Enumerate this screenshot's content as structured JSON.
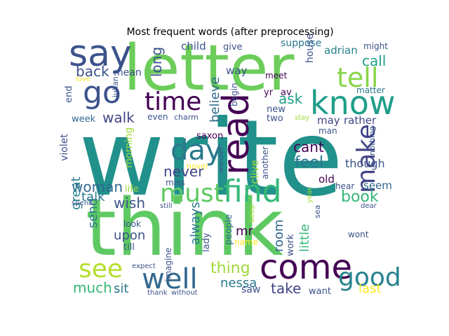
{
  "chart_data": {
    "type": "wordcloud",
    "title": "Most frequent words (after preprocessing)",
    "colormap": "viridis",
    "background": "#ffffff",
    "words": [
      {
        "text": "write",
        "color": "#21918c"
      },
      {
        "text": "think",
        "color": "#5ec962"
      },
      {
        "text": "letter",
        "color": "#6ccd5a"
      },
      {
        "text": "say",
        "color": "#3b528b"
      },
      {
        "text": "come",
        "color": "#440154"
      },
      {
        "text": "know",
        "color": "#1f9e89"
      },
      {
        "text": "find",
        "color": "#35b779"
      },
      {
        "text": "must",
        "color": "#5ec962"
      },
      {
        "text": "well",
        "color": "#31688e"
      },
      {
        "text": "go",
        "color": "#3b528b"
      },
      {
        "text": "time",
        "color": "#440154"
      },
      {
        "text": "see",
        "color": "#b5de2b"
      },
      {
        "text": "day",
        "color": "#2a788e"
      },
      {
        "text": "read",
        "color": "#440154"
      },
      {
        "text": "make",
        "color": "#414487"
      },
      {
        "text": "tell",
        "color": "#86d549"
      },
      {
        "text": "good",
        "color": "#26828e"
      },
      {
        "text": "book",
        "color": "#35b779"
      },
      {
        "text": "feel",
        "color": "#2a788e"
      },
      {
        "text": "cant",
        "color": "#440154"
      },
      {
        "text": "ask",
        "color": "#1f9e89"
      },
      {
        "text": "believe",
        "color": "#31688e"
      },
      {
        "text": "thing",
        "color": "#a0da39"
      },
      {
        "text": "never",
        "color": "#414487"
      },
      {
        "text": "woman",
        "color": "#31688e"
      },
      {
        "text": "back",
        "color": "#3b528b"
      },
      {
        "text": "long",
        "color": "#3b528b"
      },
      {
        "text": "walk",
        "color": "#414487"
      },
      {
        "text": "much",
        "color": "#35b779"
      },
      {
        "text": "take",
        "color": "#414487"
      },
      {
        "text": "talk",
        "color": "#2a788e"
      },
      {
        "text": "wish",
        "color": "#3b528b"
      },
      {
        "text": "great",
        "color": "#26828e"
      },
      {
        "text": "little",
        "color": "#35b779"
      },
      {
        "text": "always",
        "color": "#2a788e"
      },
      {
        "text": "call",
        "color": "#1f9e89"
      },
      {
        "text": "room",
        "color": "#31688e"
      },
      {
        "text": "nessa",
        "color": "#2a788e"
      },
      {
        "text": "upon",
        "color": "#3b528b"
      },
      {
        "text": "last",
        "color": "#fde725"
      },
      {
        "text": "send",
        "color": "#2a788e"
      },
      {
        "text": "sit",
        "color": "#2a788e"
      },
      {
        "text": "mr",
        "color": "#440154"
      },
      {
        "text": "though",
        "color": "#3b528b"
      },
      {
        "text": "may",
        "color": "#414487"
      },
      {
        "text": "rather",
        "color": "#414487"
      },
      {
        "text": "seem",
        "color": "#31688e"
      },
      {
        "text": "old",
        "color": "#440154"
      },
      {
        "text": "adrian",
        "color": "#26828e"
      },
      {
        "text": "child",
        "color": "#3b528b"
      },
      {
        "text": "give",
        "color": "#3b528b"
      },
      {
        "text": "suppose",
        "color": "#2a788e"
      },
      {
        "text": "way",
        "color": "#3b528b"
      },
      {
        "text": "house",
        "color": "#3b528b"
      },
      {
        "text": "mean",
        "color": "#3b528b"
      },
      {
        "text": "morning",
        "color": "#a0da39"
      },
      {
        "text": "clive",
        "color": "#a0da39"
      },
      {
        "text": "violet",
        "color": "#3b528b"
      },
      {
        "text": "week",
        "color": "#31688e"
      },
      {
        "text": "end",
        "color": "#3b528b"
      },
      {
        "text": "begin",
        "color": "#3b528b"
      },
      {
        "text": "saxon",
        "color": "#440154"
      },
      {
        "text": "new",
        "color": "#3b528b"
      },
      {
        "text": "yr",
        "color": "#440154"
      },
      {
        "text": "av",
        "color": "#440154"
      },
      {
        "text": "two",
        "color": "#3b528b"
      },
      {
        "text": "man",
        "color": "#3b528b"
      },
      {
        "text": "meet",
        "color": "#440154"
      },
      {
        "text": "might",
        "color": "#3b528b"
      },
      {
        "text": "matter",
        "color": "#2a788e"
      },
      {
        "text": "nothing",
        "color": "#3b528b"
      },
      {
        "text": "even",
        "color": "#3b528b"
      },
      {
        "text": "charm",
        "color": "#3b528b"
      },
      {
        "text": "julian",
        "color": "#3b528b"
      },
      {
        "text": "another",
        "color": "#3b528b"
      },
      {
        "text": "stay",
        "color": "#a0da39"
      },
      {
        "text": "life",
        "color": "#a0da39"
      },
      {
        "text": "miss",
        "color": "#3b528b"
      },
      {
        "text": "novel",
        "color": "#fde725"
      },
      {
        "text": "wonder",
        "color": "#3b528b"
      },
      {
        "text": "love",
        "color": "#fde725"
      },
      {
        "text": "hear",
        "color": "#3b528b"
      },
      {
        "text": "year",
        "color": "#a0da39"
      },
      {
        "text": "sea",
        "color": "#3b528b"
      },
      {
        "text": "dear",
        "color": "#3b528b"
      },
      {
        "text": "people",
        "color": "#31688e"
      },
      {
        "text": "lady",
        "color": "#3b528b"
      },
      {
        "text": "work",
        "color": "#3b528b"
      },
      {
        "text": "keep",
        "color": "#a0da39"
      },
      {
        "text": "name",
        "color": "#fde725"
      },
      {
        "text": "imagine",
        "color": "#3b528b"
      },
      {
        "text": "look",
        "color": "#3b528b"
      },
      {
        "text": "till",
        "color": "#3b528b"
      },
      {
        "text": "spend",
        "color": "#3b528b"
      },
      {
        "text": "still",
        "color": "#3b528b"
      },
      {
        "text": "expect",
        "color": "#3b528b"
      },
      {
        "text": "thank",
        "color": "#3b528b"
      },
      {
        "text": "without",
        "color": "#3b528b"
      },
      {
        "text": "saw",
        "color": "#3b528b"
      },
      {
        "text": "want",
        "color": "#3b528b"
      },
      {
        "text": "wont",
        "color": "#3b528b"
      }
    ]
  }
}
